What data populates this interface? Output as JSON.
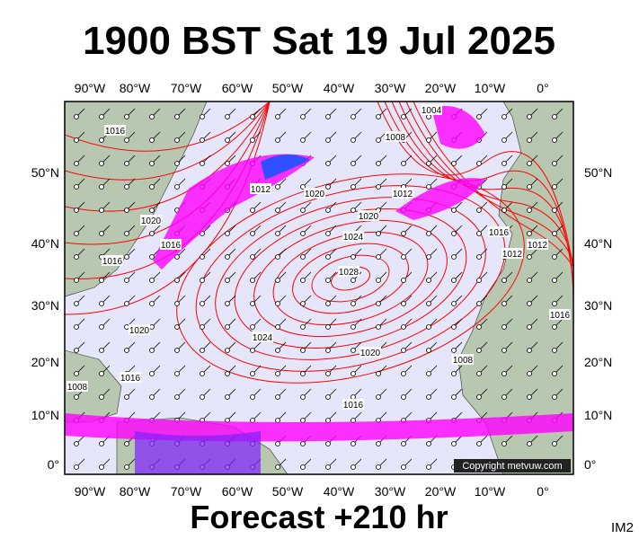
{
  "title": "1900 BST Sat 19 Jul 2025",
  "footer": "Forecast +210 hr",
  "corner_label": "IM2",
  "copyright": "Copyright metvuw.com",
  "longitude_labels": [
    "90°W",
    "80°W",
    "70°W",
    "60°W",
    "50°W",
    "40°W",
    "30°W",
    "20°W",
    "10°W",
    "0°"
  ],
  "latitude_labels": [
    "50°N",
    "40°N",
    "30°N",
    "20°N",
    "10°N",
    "0°"
  ],
  "isobar_labels": [
    "1016",
    "1020",
    "1016",
    "1016",
    "1020",
    "1016",
    "1008",
    "1012",
    "1020",
    "1020",
    "1024",
    "1028",
    "1024",
    "1020",
    "1016",
    "1012",
    "1008",
    "1012",
    "1016",
    "1012",
    "1016",
    "1008",
    "1004"
  ]
}
